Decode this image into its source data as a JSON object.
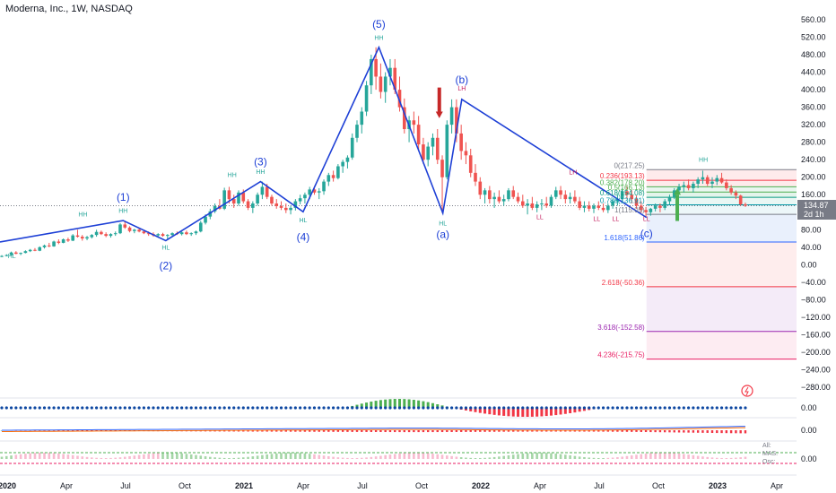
{
  "header": {
    "title": "Moderna, Inc., 1W, NASDAQ"
  },
  "price_badge": {
    "value": "134.87",
    "countdown": "2d 1h"
  },
  "chart_data": {
    "type": "candlestick",
    "title": "Moderna, Inc., 1W, NASDAQ",
    "price_axis": {
      "ticks": [
        "560.00",
        "520.00",
        "480.00",
        "440.00",
        "400.00",
        "360.00",
        "320.00",
        "280.00",
        "240.00",
        "200.00",
        "160.00",
        "120.00",
        "80.00",
        "40.00",
        "0.00",
        "−40.00",
        "−80.00",
        "−120.00",
        "−160.00",
        "−200.00",
        "−240.00",
        "−280.00"
      ],
      "range": [
        -280,
        560
      ]
    },
    "time_axis": {
      "ticks": [
        "2020",
        "Apr",
        "Jul",
        "Oct",
        "2021",
        "Apr",
        "Jul",
        "Oct",
        "2022",
        "Apr",
        "Jul",
        "Oct",
        "2023",
        "Apr"
      ]
    },
    "elliott_waves": [
      {
        "label": "(1)",
        "date": 2020.52,
        "price": 101
      },
      {
        "label": "(2)",
        "date": 2020.7,
        "price": 55
      },
      {
        "label": "(3)",
        "date": 2021.1,
        "price": 190
      },
      {
        "label": "(4)",
        "date": 2021.28,
        "price": 121
      },
      {
        "label": "(5)",
        "date": 2021.6,
        "price": 497
      },
      {
        "label": "(a)",
        "date": 2021.87,
        "price": 118
      },
      {
        "label": "(b)",
        "date": 2021.95,
        "price": 378
      },
      {
        "label": "(c)",
        "date": 2022.73,
        "price": 108
      }
    ],
    "wave_path": [
      {
        "date": 2020.0,
        "price": 52
      },
      {
        "date": 2020.52,
        "price": 101
      },
      {
        "date": 2020.7,
        "price": 55
      },
      {
        "date": 2021.1,
        "price": 190
      },
      {
        "date": 2021.28,
        "price": 121
      },
      {
        "date": 2021.6,
        "price": 497
      },
      {
        "date": 2021.87,
        "price": 118
      },
      {
        "date": 2021.95,
        "price": 378
      },
      {
        "date": 2022.73,
        "price": 108
      }
    ],
    "swing_labels": [
      {
        "text": "HL",
        "date": 2020.05,
        "price": 15,
        "color": "#26a69a"
      },
      {
        "text": "HH",
        "date": 2020.35,
        "price": 110,
        "color": "#26a69a"
      },
      {
        "text": "HH",
        "date": 2020.52,
        "price": 118,
        "color": "#26a69a"
      },
      {
        "text": "HL",
        "date": 2020.7,
        "price": 35,
        "color": "#26a69a"
      },
      {
        "text": "HH",
        "date": 2020.98,
        "price": 200,
        "color": "#26a69a"
      },
      {
        "text": "HH",
        "date": 2021.1,
        "price": 208,
        "color": "#26a69a"
      },
      {
        "text": "HL",
        "date": 2021.28,
        "price": 97,
        "color": "#26a69a"
      },
      {
        "text": "HH",
        "date": 2021.6,
        "price": 514,
        "color": "#26a69a"
      },
      {
        "text": "HL",
        "date": 2021.87,
        "price": 90,
        "color": "#26a69a"
      },
      {
        "text": "LH",
        "date": 2021.95,
        "price": 398,
        "color": "#c2185b"
      },
      {
        "text": "LH",
        "date": 2022.42,
        "price": 207,
        "color": "#c2185b"
      },
      {
        "text": "LL",
        "date": 2022.28,
        "price": 104,
        "color": "#c2185b"
      },
      {
        "text": "LL",
        "date": 2022.52,
        "price": 100,
        "color": "#c2185b"
      },
      {
        "text": "LL",
        "date": 2022.6,
        "price": 100,
        "color": "#c2185b"
      },
      {
        "text": "LL",
        "date": 2022.73,
        "price": 100,
        "color": "#c2185b"
      },
      {
        "text": "HH",
        "date": 2022.97,
        "price": 235,
        "color": "#26a69a"
      }
    ],
    "fibonacci": [
      {
        "label": "0(217.25)",
        "price": 217.25,
        "color": "#787b86"
      },
      {
        "label": "0.236(193.13)",
        "price": 193.13,
        "color": "#f23645"
      },
      {
        "label": "0.382(178.20)",
        "price": 178.2,
        "color": "#4caf50"
      },
      {
        "label": "0.5(166.13)",
        "price": 166.13,
        "color": "#4caf50"
      },
      {
        "label": "0.618(154.08)",
        "price": 154.08,
        "color": "#089981"
      },
      {
        "label": "0.786(136.91)",
        "price": 136.91,
        "color": "#0097a7"
      },
      {
        "label": "1(115.05)",
        "price": 115.05,
        "color": "#787b86"
      },
      {
        "label": "1.618(51.86)",
        "price": 51.86,
        "color": "#2962ff"
      },
      {
        "label": "2.618(-50.36)",
        "price": -50.36,
        "color": "#f23645"
      },
      {
        "label": "3.618(-152.58)",
        "price": -152.58,
        "color": "#9c27b0"
      },
      {
        "label": "4.236(-215.75)",
        "price": -215.75,
        "color": "#e91e63"
      }
    ],
    "candles_weekly_closes": [
      [
        2020.0,
        18,
        22,
        17,
        20
      ],
      [
        2020.02,
        20,
        24,
        19,
        22
      ],
      [
        2020.04,
        22,
        30,
        21,
        28
      ],
      [
        2020.06,
        28,
        31,
        24,
        25
      ],
      [
        2020.08,
        25,
        28,
        22,
        27
      ],
      [
        2020.1,
        27,
        33,
        26,
        31
      ],
      [
        2020.12,
        31,
        36,
        29,
        34
      ],
      [
        2020.14,
        34,
        38,
        31,
        32
      ],
      [
        2020.16,
        32,
        42,
        31,
        40
      ],
      [
        2020.18,
        40,
        46,
        37,
        44
      ],
      [
        2020.2,
        44,
        50,
        40,
        42
      ],
      [
        2020.22,
        42,
        55,
        41,
        53
      ],
      [
        2020.24,
        53,
        58,
        47,
        50
      ],
      [
        2020.26,
        50,
        60,
        49,
        58
      ],
      [
        2020.28,
        58,
        62,
        52,
        55
      ],
      [
        2020.3,
        55,
        70,
        54,
        67
      ],
      [
        2020.32,
        67,
        80,
        62,
        64
      ],
      [
        2020.34,
        64,
        68,
        55,
        60
      ],
      [
        2020.36,
        60,
        66,
        56,
        63
      ],
      [
        2020.38,
        63,
        70,
        60,
        68
      ],
      [
        2020.4,
        68,
        80,
        64,
        75
      ],
      [
        2020.42,
        75,
        78,
        68,
        70
      ],
      [
        2020.44,
        70,
        74,
        63,
        66
      ],
      [
        2020.46,
        66,
        72,
        62,
        70
      ],
      [
        2020.48,
        70,
        76,
        66,
        72
      ],
      [
        2020.5,
        72,
        95,
        70,
        92
      ],
      [
        2020.52,
        92,
        100,
        82,
        85
      ],
      [
        2020.54,
        85,
        88,
        74,
        77
      ],
      [
        2020.56,
        77,
        82,
        72,
        80
      ],
      [
        2020.58,
        80,
        84,
        74,
        76
      ],
      [
        2020.6,
        76,
        79,
        70,
        72
      ],
      [
        2020.62,
        72,
        76,
        66,
        70
      ],
      [
        2020.64,
        70,
        74,
        64,
        67
      ],
      [
        2020.66,
        67,
        72,
        62,
        70
      ],
      [
        2020.68,
        70,
        73,
        64,
        66
      ],
      [
        2020.7,
        66,
        70,
        58,
        68
      ],
      [
        2020.72,
        68,
        74,
        64,
        72
      ],
      [
        2020.74,
        72,
        76,
        68,
        70
      ],
      [
        2020.76,
        70,
        76,
        67,
        74
      ],
      [
        2020.78,
        74,
        78,
        68,
        70
      ],
      [
        2020.8,
        70,
        74,
        66,
        72
      ],
      [
        2020.82,
        72,
        78,
        68,
        76
      ],
      [
        2020.84,
        76,
        100,
        74,
        96
      ],
      [
        2020.86,
        96,
        115,
        92,
        110
      ],
      [
        2020.88,
        110,
        128,
        104,
        122
      ],
      [
        2020.9,
        122,
        140,
        118,
        134
      ],
      [
        2020.92,
        134,
        150,
        126,
        128
      ],
      [
        2020.94,
        128,
        176,
        125,
        170
      ],
      [
        2020.96,
        170,
        178,
        140,
        150
      ],
      [
        2020.98,
        150,
        160,
        130,
        140
      ],
      [
        2021.0,
        140,
        170,
        135,
        165
      ],
      [
        2021.02,
        165,
        172,
        140,
        145
      ],
      [
        2021.04,
        145,
        150,
        125,
        130
      ],
      [
        2021.06,
        130,
        145,
        118,
        140
      ],
      [
        2021.08,
        140,
        165,
        135,
        160
      ],
      [
        2021.1,
        160,
        190,
        150,
        178
      ],
      [
        2021.12,
        178,
        185,
        150,
        155
      ],
      [
        2021.14,
        155,
        160,
        135,
        140
      ],
      [
        2021.16,
        140,
        150,
        128,
        134
      ],
      [
        2021.18,
        134,
        145,
        125,
        130
      ],
      [
        2021.2,
        130,
        140,
        118,
        125
      ],
      [
        2021.22,
        125,
        135,
        115,
        130
      ],
      [
        2021.24,
        130,
        150,
        124,
        145
      ],
      [
        2021.26,
        145,
        160,
        138,
        152
      ],
      [
        2021.28,
        152,
        165,
        140,
        160
      ],
      [
        2021.3,
        160,
        178,
        150,
        172
      ],
      [
        2021.32,
        172,
        180,
        160,
        165
      ],
      [
        2021.34,
        165,
        175,
        150,
        168
      ],
      [
        2021.36,
        168,
        195,
        160,
        190
      ],
      [
        2021.38,
        190,
        210,
        180,
        205
      ],
      [
        2021.4,
        205,
        215,
        190,
        198
      ],
      [
        2021.42,
        198,
        230,
        195,
        225
      ],
      [
        2021.44,
        225,
        240,
        210,
        235
      ],
      [
        2021.46,
        235,
        250,
        220,
        245
      ],
      [
        2021.48,
        245,
        300,
        240,
        290
      ],
      [
        2021.5,
        290,
        330,
        280,
        320
      ],
      [
        2021.52,
        320,
        360,
        300,
        350
      ],
      [
        2021.54,
        350,
        420,
        340,
        410
      ],
      [
        2021.56,
        410,
        480,
        390,
        470
      ],
      [
        2021.58,
        470,
        497,
        400,
        430
      ],
      [
        2021.6,
        430,
        460,
        380,
        395
      ],
      [
        2021.62,
        395,
        440,
        370,
        430
      ],
      [
        2021.64,
        430,
        470,
        410,
        450
      ],
      [
        2021.66,
        450,
        470,
        390,
        400
      ],
      [
        2021.68,
        400,
        430,
        350,
        360
      ],
      [
        2021.7,
        360,
        380,
        300,
        310
      ],
      [
        2021.72,
        310,
        340,
        280,
        330
      ],
      [
        2021.74,
        330,
        350,
        300,
        320
      ],
      [
        2021.76,
        320,
        340,
        260,
        275
      ],
      [
        2021.78,
        275,
        290,
        230,
        240
      ],
      [
        2021.8,
        240,
        280,
        225,
        270
      ],
      [
        2021.82,
        270,
        300,
        250,
        290
      ],
      [
        2021.84,
        290,
        310,
        230,
        240
      ],
      [
        2021.86,
        240,
        250,
        118,
        200
      ],
      [
        2021.88,
        200,
        330,
        195,
        320
      ],
      [
        2021.9,
        320,
        378,
        300,
        360
      ],
      [
        2021.92,
        360,
        378,
        280,
        300
      ],
      [
        2021.94,
        300,
        320,
        240,
        260
      ],
      [
        2021.96,
        260,
        280,
        230,
        250
      ],
      [
        2021.98,
        250,
        265,
        200,
        210
      ],
      [
        2022.0,
        210,
        230,
        180,
        190
      ],
      [
        2022.02,
        190,
        200,
        150,
        160
      ],
      [
        2022.04,
        160,
        175,
        140,
        170
      ],
      [
        2022.06,
        170,
        180,
        140,
        150
      ],
      [
        2022.08,
        150,
        165,
        130,
        155
      ],
      [
        2022.1,
        155,
        170,
        140,
        145
      ],
      [
        2022.12,
        145,
        160,
        135,
        150
      ],
      [
        2022.14,
        150,
        175,
        145,
        170
      ],
      [
        2022.16,
        170,
        180,
        150,
        155
      ],
      [
        2022.18,
        155,
        165,
        140,
        145
      ],
      [
        2022.2,
        145,
        160,
        130,
        135
      ],
      [
        2022.22,
        135,
        150,
        115,
        140
      ],
      [
        2022.24,
        140,
        155,
        125,
        130
      ],
      [
        2022.26,
        130,
        145,
        120,
        138
      ],
      [
        2022.28,
        138,
        150,
        125,
        140
      ],
      [
        2022.3,
        140,
        155,
        130,
        135
      ],
      [
        2022.32,
        135,
        160,
        130,
        155
      ],
      [
        2022.34,
        155,
        178,
        150,
        170
      ],
      [
        2022.36,
        170,
        180,
        150,
        160
      ],
      [
        2022.38,
        160,
        170,
        140,
        150
      ],
      [
        2022.4,
        150,
        165,
        140,
        155
      ],
      [
        2022.42,
        155,
        170,
        140,
        145
      ],
      [
        2022.44,
        145,
        155,
        125,
        130
      ],
      [
        2022.46,
        130,
        145,
        120,
        135
      ],
      [
        2022.48,
        135,
        145,
        122,
        128
      ],
      [
        2022.5,
        128,
        140,
        118,
        135
      ],
      [
        2022.52,
        135,
        145,
        125,
        130
      ],
      [
        2022.54,
        130,
        140,
        120,
        125
      ],
      [
        2022.56,
        125,
        140,
        118,
        135
      ],
      [
        2022.58,
        135,
        150,
        128,
        145
      ],
      [
        2022.6,
        145,
        160,
        135,
        150
      ],
      [
        2022.62,
        150,
        175,
        145,
        168
      ],
      [
        2022.64,
        168,
        180,
        150,
        160
      ],
      [
        2022.66,
        160,
        170,
        140,
        150
      ],
      [
        2022.68,
        150,
        158,
        128,
        135
      ],
      [
        2022.7,
        135,
        145,
        118,
        125
      ],
      [
        2022.72,
        125,
        132,
        110,
        120
      ],
      [
        2022.74,
        120,
        130,
        112,
        128
      ],
      [
        2022.76,
        128,
        140,
        122,
        135
      ],
      [
        2022.78,
        135,
        140,
        120,
        130
      ],
      [
        2022.8,
        130,
        150,
        125,
        145
      ],
      [
        2022.82,
        145,
        160,
        138,
        155
      ],
      [
        2022.84,
        155,
        175,
        150,
        170
      ],
      [
        2022.86,
        170,
        185,
        160,
        178
      ],
      [
        2022.88,
        178,
        190,
        165,
        182
      ],
      [
        2022.9,
        182,
        195,
        170,
        175
      ],
      [
        2022.92,
        175,
        190,
        165,
        185
      ],
      [
        2022.94,
        185,
        200,
        175,
        195
      ],
      [
        2022.96,
        195,
        215,
        185,
        200
      ],
      [
        2022.98,
        200,
        205,
        180,
        185
      ],
      [
        2023.0,
        185,
        200,
        175,
        190
      ],
      [
        2023.02,
        190,
        205,
        182,
        198
      ],
      [
        2023.04,
        198,
        210,
        185,
        188
      ],
      [
        2023.06,
        188,
        195,
        170,
        175
      ],
      [
        2023.08,
        175,
        182,
        160,
        165
      ],
      [
        2023.1,
        165,
        170,
        150,
        158
      ],
      [
        2023.12,
        158,
        160,
        135,
        138
      ],
      [
        2023.14,
        138,
        142,
        132,
        135
      ]
    ],
    "indicators": {
      "pane1_value": "0.00",
      "pane2_value": "0.00",
      "pane3_value": "0.00",
      "pane3_legend": [
        "All:",
        "MAS:",
        "Osc:"
      ]
    }
  }
}
